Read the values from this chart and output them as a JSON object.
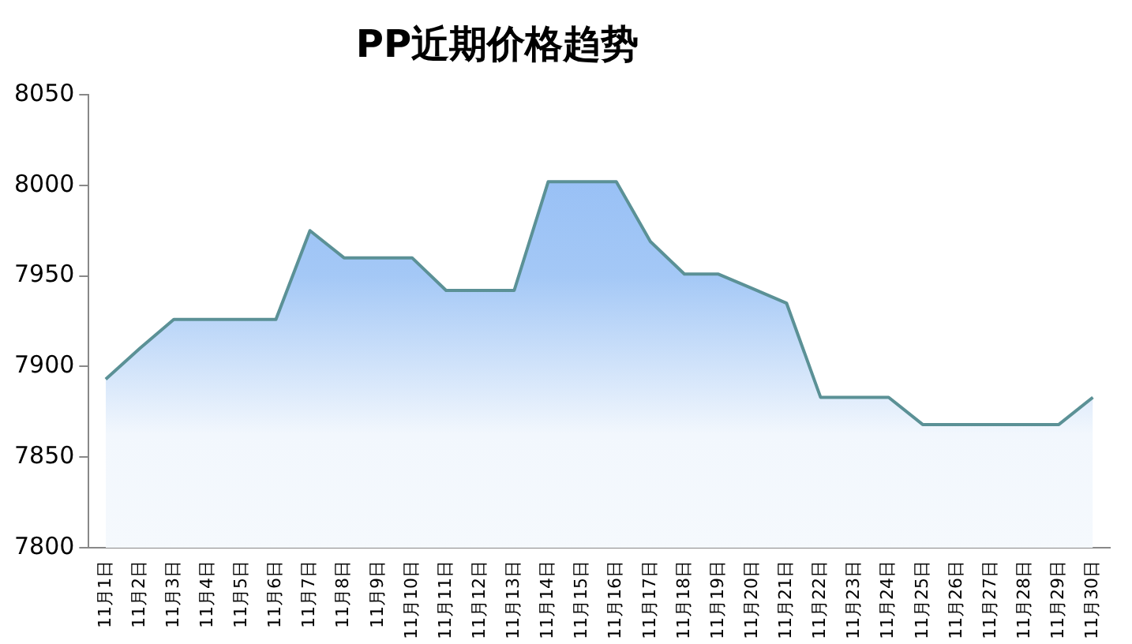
{
  "chart_data": {
    "type": "area",
    "title": "PP近期价格趋势",
    "categories": [
      "11月1日",
      "11月2日",
      "11月3日",
      "11月4日",
      "11月5日",
      "11月6日",
      "11月7日",
      "11月8日",
      "11月9日",
      "11月10日",
      "11月11日",
      "11月12日",
      "11月13日",
      "11月14日",
      "11月15日",
      "11月16日",
      "11月17日",
      "11月18日",
      "11月19日",
      "11月20日",
      "11月21日",
      "11月22日",
      "11月23日",
      "11月24日",
      "11月25日",
      "11月26日",
      "11月27日",
      "11月28日",
      "11月29日",
      "11月30日"
    ],
    "series": [
      {
        "color": "#5b9196",
        "values": [
          7893,
          7910,
          7926,
          7926,
          7926,
          7926,
          7975,
          7960,
          7960,
          7960,
          7942,
          7942,
          7942,
          8002,
          8002,
          8002,
          7969,
          7951,
          7951,
          7943,
          7935,
          7883,
          7883,
          7883,
          7868,
          7868,
          7868,
          7868,
          7868,
          7883
        ]
      }
    ],
    "ylim": [
      7800,
      8050
    ],
    "yticks": [
      7800,
      7850,
      7900,
      7950,
      8000,
      8050
    ],
    "grid": false,
    "legend": false
  }
}
